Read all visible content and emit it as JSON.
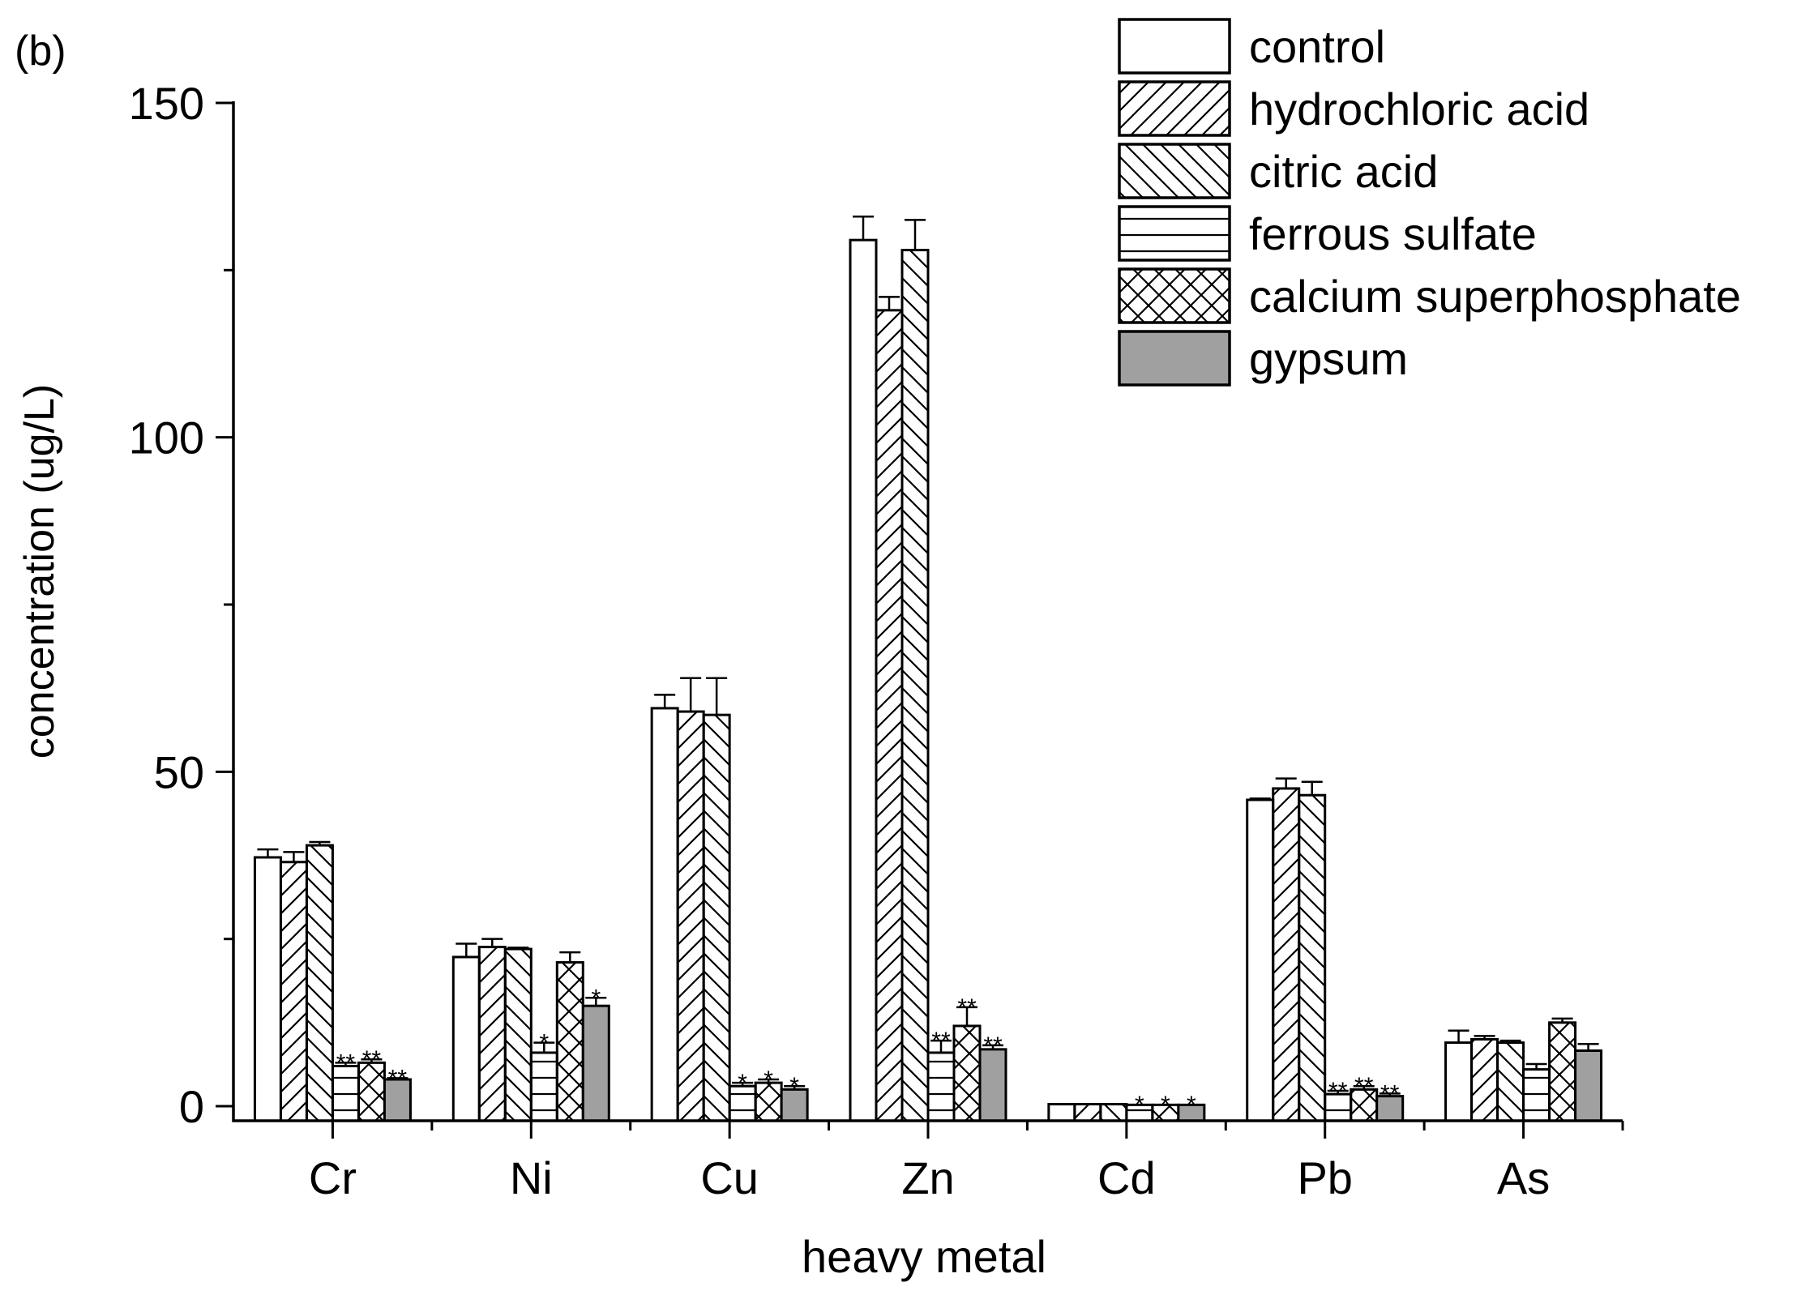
{
  "chart_data": {
    "type": "bar",
    "panel_label": "(b)",
    "title": "",
    "xlabel": "heavy metal",
    "ylabel": "concentration (ug/L)",
    "ylim": [
      -2,
      150
    ],
    "yticks": [
      0,
      50,
      100,
      150
    ],
    "categories": [
      "Cr",
      "Ni",
      "Cu",
      "Zn",
      "Cd",
      "Pb",
      "As"
    ],
    "legend_position": "top-right",
    "series": [
      {
        "name": "control",
        "pattern": "blank",
        "values": [
          37.2,
          22.3,
          59.5,
          129.5,
          0.3,
          45.8,
          9.5
        ],
        "errors": [
          1.2,
          2.0,
          2.0,
          3.5,
          0.05,
          0.2,
          1.8
        ],
        "marks": [
          "",
          "",
          "",
          "",
          "",
          "",
          ""
        ]
      },
      {
        "name": "hydrochloric acid",
        "pattern": "diag-up",
        "values": [
          36.5,
          23.8,
          59.0,
          119.0,
          0.3,
          47.5,
          10.0
        ],
        "errors": [
          1.5,
          1.2,
          5.0,
          2.0,
          0.05,
          1.5,
          0.5
        ],
        "marks": [
          "",
          "",
          "",
          "",
          "",
          "",
          ""
        ]
      },
      {
        "name": "citric acid",
        "pattern": "diag-down",
        "values": [
          39.0,
          23.5,
          58.5,
          128.0,
          0.3,
          46.5,
          9.5
        ],
        "errors": [
          0.5,
          0.2,
          5.5,
          4.5,
          0.05,
          2.0,
          0.3
        ],
        "marks": [
          "",
          "",
          "",
          "",
          "",
          "",
          ""
        ]
      },
      {
        "name": "ferrous sulfate",
        "pattern": "horizontal",
        "values": [
          6.0,
          8.0,
          3.0,
          8.0,
          0.2,
          1.8,
          5.5
        ],
        "errors": [
          0.5,
          1.5,
          0.5,
          1.8,
          0.05,
          0.5,
          0.8
        ],
        "marks": [
          "**",
          "*",
          "*",
          "**",
          "*",
          "**",
          ""
        ]
      },
      {
        "name": "calcium superphosphate",
        "pattern": "cross",
        "values": [
          6.5,
          21.5,
          3.5,
          12.0,
          0.2,
          2.5,
          12.5
        ],
        "errors": [
          0.5,
          1.5,
          0.5,
          2.8,
          0.05,
          0.5,
          0.6
        ],
        "marks": [
          "**",
          "",
          "*",
          "**",
          "*",
          "**",
          ""
        ]
      },
      {
        "name": "gypsum",
        "pattern": "gray",
        "values": [
          4.0,
          15.0,
          2.5,
          8.5,
          0.2,
          1.5,
          8.3
        ],
        "errors": [
          0.2,
          1.2,
          0.5,
          0.6,
          0.05,
          0.4,
          1.0
        ],
        "marks": [
          "**",
          "*",
          "*",
          "**",
          "*",
          "**",
          ""
        ]
      }
    ]
  },
  "colors": {
    "axis": "#000000",
    "bar_fill": "#ffffff",
    "gypsum_fill": "#a0a0a0"
  }
}
